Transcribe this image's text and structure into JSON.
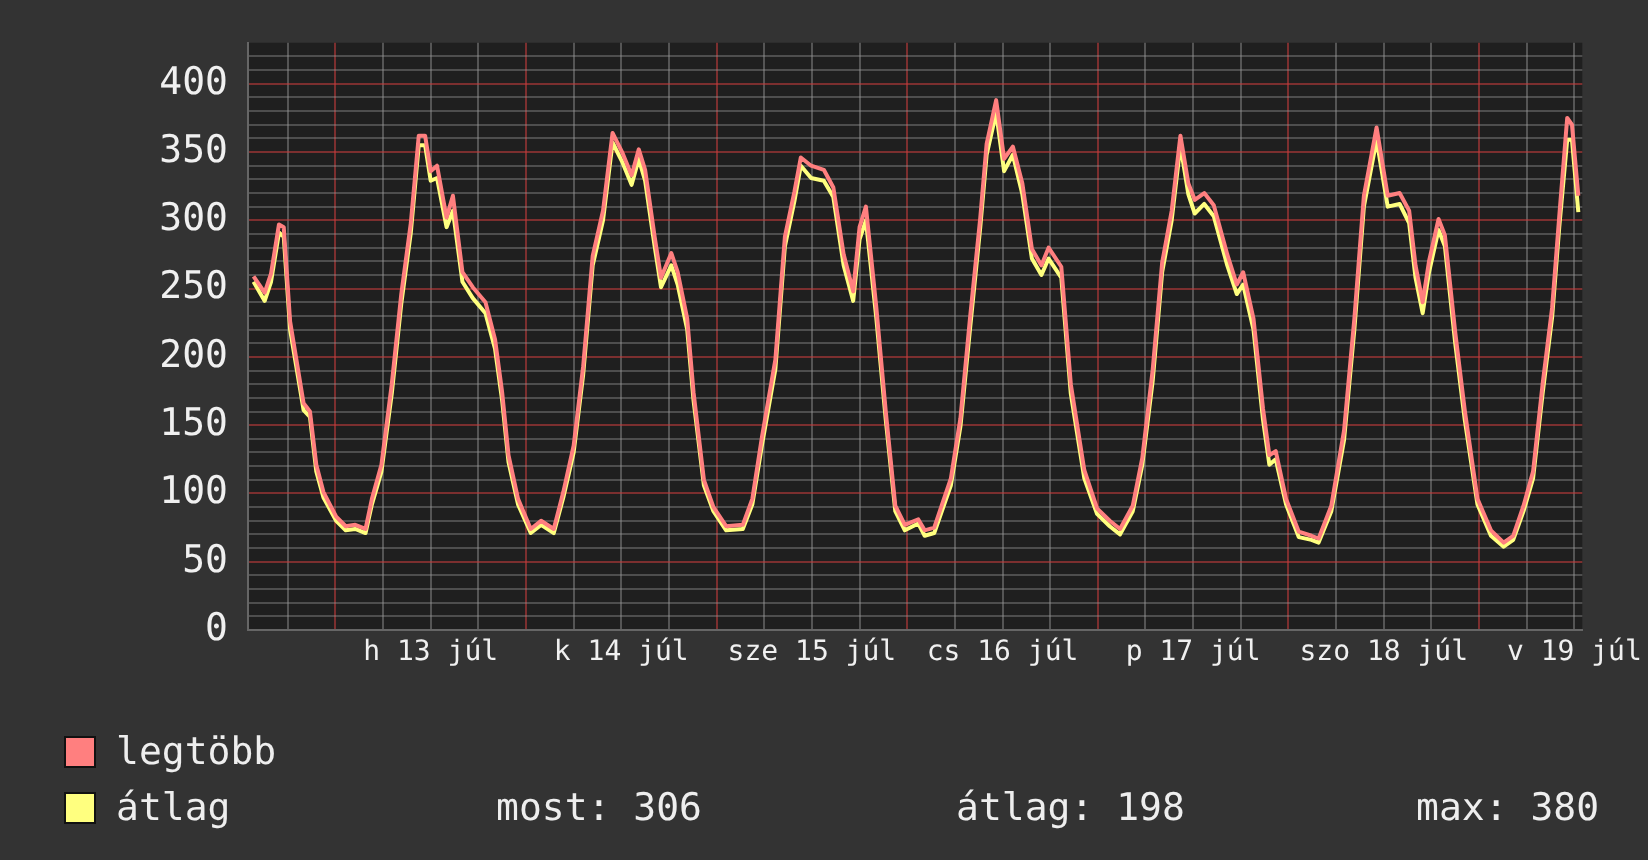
{
  "chart_data": {
    "type": "line",
    "legend": "bottom",
    "grid": true,
    "marker": "none",
    "line_style": "solid",
    "xlim": [
      "--07-12T13:00",
      "--07-19T13:00"
    ],
    "xticks": [
      {
        "value": "--07-12T18:00",
        "label": null
      },
      {
        "value": "--07-13T00:00",
        "label": null
      },
      {
        "value": "--07-13T06:00",
        "label": null
      },
      {
        "value": "--07-13T12:00",
        "label": "h 13 júl"
      },
      {
        "value": "--07-13T18:00",
        "label": null
      },
      {
        "value": "--07-14T00:00",
        "label": null
      },
      {
        "value": "--07-14T06:00",
        "label": null
      },
      {
        "value": "--07-14T12:00",
        "label": "k 14 júl"
      },
      {
        "value": "--07-14T18:00",
        "label": null
      },
      {
        "value": "--07-15T00:00",
        "label": null
      },
      {
        "value": "--07-15T06:00",
        "label": null
      },
      {
        "value": "--07-15T12:00",
        "label": "sze 15 júl"
      },
      {
        "value": "--07-15T18:00",
        "label": null
      },
      {
        "value": "--07-16T00:00",
        "label": null
      },
      {
        "value": "--07-16T06:00",
        "label": null
      },
      {
        "value": "--07-16T12:00",
        "label": "cs 16 júl"
      },
      {
        "value": "--07-16T18:00",
        "label": null
      },
      {
        "value": "--07-17T00:00",
        "label": null
      },
      {
        "value": "--07-17T06:00",
        "label": null
      },
      {
        "value": "--07-17T12:00",
        "label": "p 17 júl"
      },
      {
        "value": "--07-17T18:00",
        "label": null
      },
      {
        "value": "--07-18T00:00",
        "label": null
      },
      {
        "value": "--07-18T06:00",
        "label": null
      },
      {
        "value": "--07-18T12:00",
        "label": "szo 18 júl"
      },
      {
        "value": "--07-18T18:00",
        "label": null
      },
      {
        "value": "--07-19T00:00",
        "label": null
      },
      {
        "value": "--07-19T06:00",
        "label": null
      },
      {
        "value": "--07-19T12:00",
        "label": "v 19 júl"
      }
    ],
    "ylim": [
      0,
      430
    ],
    "yticks": [
      0,
      {
        "value": 10,
        "label": null
      },
      {
        "value": 20,
        "label": null
      },
      {
        "value": 30,
        "label": null
      },
      {
        "value": 40,
        "label": null
      },
      50,
      {
        "value": 60,
        "label": null
      },
      {
        "value": 70,
        "label": null
      },
      {
        "value": 80,
        "label": null
      },
      {
        "value": 90,
        "label": null
      },
      100,
      {
        "value": 110,
        "label": null
      },
      {
        "value": 120,
        "label": null
      },
      {
        "value": 130,
        "label": null
      },
      {
        "value": 140,
        "label": null
      },
      150,
      {
        "value": 160,
        "label": null
      },
      {
        "value": 170,
        "label": null
      },
      {
        "value": 180,
        "label": null
      },
      {
        "value": 190,
        "label": null
      },
      200,
      {
        "value": 210,
        "label": null
      },
      {
        "value": 220,
        "label": null
      },
      {
        "value": 230,
        "label": null
      },
      {
        "value": 240,
        "label": null
      },
      250,
      {
        "value": 260,
        "label": null
      },
      {
        "value": 270,
        "label": null
      },
      {
        "value": 280,
        "label": null
      },
      {
        "value": 290,
        "label": null
      },
      300,
      {
        "value": 310,
        "label": null
      },
      {
        "value": 320,
        "label": null
      },
      {
        "value": 330,
        "label": null
      },
      {
        "value": 340,
        "label": null
      },
      350,
      {
        "value": 360,
        "label": null
      },
      {
        "value": 370,
        "label": null
      },
      {
        "value": 380,
        "label": null
      },
      {
        "value": 390,
        "label": null
      },
      400,
      {
        "value": 410,
        "label": null
      },
      {
        "value": 420,
        "label": null
      }
    ],
    "x": [
      "--07-12T13:42",
      "--07-12T15:06",
      "--07-12T15:54",
      "--07-12T16:54",
      "--07-12T17:30",
      "--07-12T18:18",
      "--07-12T20:00",
      "--07-12T20:48",
      "--07-12T21:36",
      "--07-12T22:30",
      "--07-13T00:06",
      "--07-13T01:18",
      "--07-13T02:30",
      "--07-13T03:48",
      "--07-13T04:36",
      "--07-13T05:48",
      "--07-13T07:06",
      "--07-13T08:18",
      "--07-13T09:30",
      "--07-13T10:30",
      "--07-13T11:18",
      "--07-13T12:00",
      "--07-13T12:48",
      "--07-13T14:00",
      "--07-13T14:48",
      "--07-13T16:00",
      "--07-13T17:18",
      "--07-13T18:54",
      "--07-13T20:06",
      "--07-13T21:00",
      "--07-13T21:48",
      "--07-13T23:00",
      "--07-14T00:36",
      "--07-14T01:54",
      "--07-14T03:30",
      "--07-14T04:42",
      "--07-14T06:00",
      "--07-14T07:12",
      "--07-14T08:24",
      "--07-14T09:42",
      "--07-14T10:54",
      "--07-14T12:06",
      "--07-14T13:18",
      "--07-14T14:12",
      "--07-14T15:00",
      "--07-14T16:12",
      "--07-14T17:00",
      "--07-14T18:18",
      "--07-14T19:06",
      "--07-14T20:18",
      "--07-14T21:06",
      "--07-14T22:24",
      "--07-14T23:36",
      "--07-15T01:12",
      "--07-15T03:18",
      "--07-15T04:30",
      "--07-15T05:42",
      "--07-15T07:24",
      "--07-15T08:36",
      "--07-15T09:48",
      "--07-15T10:36",
      "--07-15T11:54",
      "--07-15T13:30",
      "--07-15T14:42",
      "--07-15T16:00",
      "--07-15T17:12",
      "--07-15T18:00",
      "--07-15T18:48",
      "--07-15T20:06",
      "--07-15T21:18",
      "--07-15T22:30",
      "--07-15T23:42",
      "--07-16T01:24",
      "--07-16T02:12",
      "--07-16T03:24",
      "--07-16T05:30",
      "--07-16T06:42",
      "--07-16T07:54",
      "--07-16T09:12",
      "--07-16T10:00",
      "--07-16T11:12",
      "--07-16T12:12",
      "--07-16T13:18",
      "--07-16T14:30",
      "--07-16T15:42",
      "--07-16T16:54",
      "--07-16T17:48",
      "--07-16T19:24",
      "--07-16T20:36",
      "--07-16T22:18",
      "--07-16T23:54",
      "--07-17T01:30",
      "--07-17T02:48",
      "--07-17T04:24",
      "--07-17T05:36",
      "--07-17T06:54",
      "--07-17T08:06",
      "--07-17T09:18",
      "--07-17T10:24",
      "--07-17T11:24",
      "--07-17T12:12",
      "--07-17T13:24",
      "--07-17T14:36",
      "--07-17T16:18",
      "--07-17T17:30",
      "--07-17T18:18",
      "--07-17T19:36",
      "--07-17T20:48",
      "--07-17T21:36",
      "--07-17T22:24",
      "--07-17T23:42",
      "--07-18T01:18",
      "--07-18T02:54",
      "--07-18T03:48",
      "--07-18T05:24",
      "--07-18T07:00",
      "--07-18T08:18",
      "--07-18T09:30",
      "--07-18T11:06",
      "--07-18T12:30",
      "--07-18T14:00",
      "--07-18T15:12",
      "--07-18T16:00",
      "--07-18T16:54",
      "--07-18T17:42",
      "--07-18T18:54",
      "--07-18T19:42",
      "--07-18T21:00",
      "--07-18T22:12",
      "--07-18T23:48",
      "--07-19T01:30",
      "--07-19T03:06",
      "--07-19T04:18",
      "--07-19T05:36",
      "--07-19T06:48",
      "--07-19T08:00",
      "--07-19T09:12",
      "--07-19T10:06",
      "--07-19T11:06",
      "--07-19T11:42",
      "--07-19T12:30"
    ],
    "series": [
      {
        "name": "legtöbb",
        "color": "#ff7f7f",
        "values": [
          259,
          247,
          261,
          297,
          295,
          226,
          166,
          160,
          121,
          101,
          83,
          76,
          77,
          74,
          96,
          121,
          180,
          246,
          298,
          362,
          362,
          336,
          340,
          302,
          318,
          262,
          251,
          240,
          213,
          174,
          128,
          96,
          74,
          80,
          74,
          101,
          135,
          193,
          274,
          307,
          364,
          350,
          333,
          352,
          337,
          288,
          258,
          276,
          262,
          228,
          174,
          110,
          90,
          76,
          77,
          96,
          141,
          198,
          288,
          321,
          346,
          340,
          337,
          324,
          275,
          248,
          295,
          310,
          237,
          160,
          91,
          77,
          81,
          73,
          75,
          111,
          155,
          228,
          302,
          356,
          388,
          345,
          354,
          327,
          279,
          267,
          280,
          266,
          180,
          117,
          89,
          80,
          74,
          91,
          126,
          190,
          269,
          307,
          362,
          327,
          315,
          320,
          311,
          275,
          253,
          262,
          228,
          162,
          128,
          131,
          96,
          72,
          69,
          67,
          91,
          146,
          228,
          318,
          368,
          318,
          320,
          307,
          267,
          240,
          270,
          301,
          289,
          218,
          161,
          96,
          73,
          64,
          69,
          91,
          116,
          180,
          236,
          303,
          375,
          370,
          318
        ]
      },
      {
        "name": "átlag",
        "color": "#ffff7f",
        "values": [
          255,
          241,
          255,
          291,
          288,
          220,
          161,
          156,
          116,
          97,
          80,
          73,
          74,
          71,
          92,
          116,
          173,
          239,
          291,
          355,
          355,
          329,
          331,
          295,
          307,
          255,
          243,
          232,
          206,
          168,
          123,
          92,
          71,
          77,
          71,
          97,
          130,
          187,
          267,
          300,
          357,
          343,
          326,
          345,
          329,
          281,
          251,
          267,
          253,
          220,
          168,
          106,
          87,
          73,
          74,
          92,
          135,
          191,
          281,
          314,
          340,
          331,
          329,
          317,
          267,
          241,
          286,
          300,
          229,
          154,
          87,
          73,
          78,
          69,
          71,
          106,
          149,
          220,
          295,
          348,
          379,
          336,
          348,
          319,
          272,
          260,
          272,
          258,
          173,
          111,
          85,
          76,
          70,
          87,
          121,
          182,
          262,
          300,
          355,
          319,
          305,
          312,
          303,
          267,
          246,
          253,
          220,
          154,
          121,
          125,
          92,
          68,
          66,
          64,
          87,
          139,
          220,
          310,
          359,
          310,
          312,
          298,
          258,
          232,
          262,
          293,
          281,
          210,
          154,
          92,
          69,
          61,
          66,
          87,
          111,
          173,
          229,
          295,
          359,
          359,
          306
        ]
      }
    ],
    "annotations": [
      "most: 306",
      "átlag: 198",
      "max: 380"
    ]
  }
}
